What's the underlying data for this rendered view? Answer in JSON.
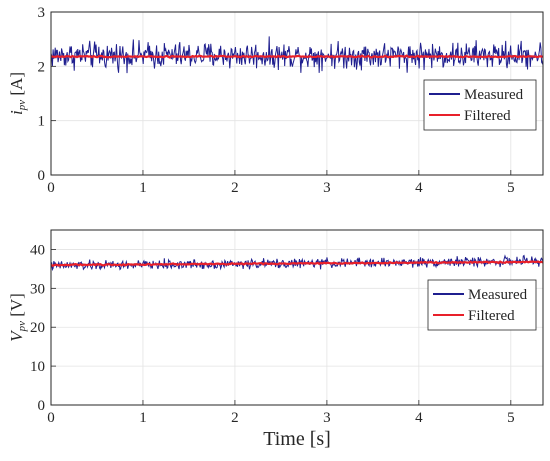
{
  "chart_data": [
    {
      "type": "line",
      "ylabel_main": "i",
      "ylabel_sub": "pv",
      "ylabel_unit": " [A]",
      "xlabel": "",
      "xlim": [
        0,
        5.35
      ],
      "ylim": [
        0,
        3
      ],
      "xticks": [
        "0",
        "1",
        "2",
        "3",
        "4",
        "5"
      ],
      "yticks": [
        "0",
        "1",
        "2",
        "3"
      ],
      "grid": true,
      "legend_position": "right-middle",
      "series": [
        {
          "name": "Measured",
          "color": "#1f1f8f",
          "mean": 2.2,
          "noise_amplitude": 0.3,
          "points": 700
        },
        {
          "name": "Filtered",
          "color": "#e8202a",
          "mean": 2.18,
          "noise_amplitude": 0.015,
          "points": 300
        }
      ]
    },
    {
      "type": "line",
      "ylabel_main": "V",
      "ylabel_sub": "pv",
      "ylabel_unit": " [V]",
      "xlabel": "Time [s]",
      "xlim": [
        0,
        5.35
      ],
      "ylim": [
        0,
        45
      ],
      "xticks": [
        "0",
        "1",
        "2",
        "3",
        "4",
        "5"
      ],
      "yticks": [
        "0",
        "10",
        "20",
        "30",
        "40"
      ],
      "grid": true,
      "legend_position": "right-middle",
      "series": [
        {
          "name": "Measured",
          "color": "#1f1f8f",
          "start": 35.8,
          "end": 37.0,
          "noise_amplitude": 1.5,
          "points": 700
        },
        {
          "name": "Filtered",
          "color": "#e8202a",
          "start": 36.0,
          "end": 36.8,
          "noise_amplitude": 0.2,
          "points": 300
        }
      ]
    }
  ]
}
